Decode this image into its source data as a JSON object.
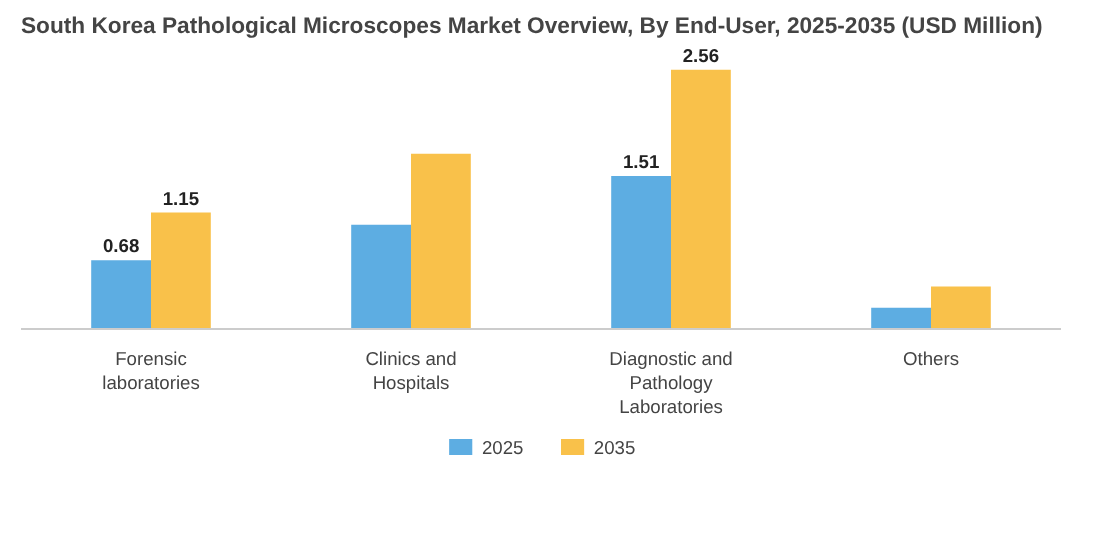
{
  "chart_data": {
    "type": "bar",
    "title": "South Korea Pathological Microscopes Market Overview, By End-User, 2025-2035 (USD Million)",
    "categories": [
      "Forensic laboratories",
      "Clinics and Hospitals",
      "Diagnostic and Pathology Laboratories",
      "Others"
    ],
    "series": [
      {
        "name": "2025",
        "color": "#5dade2",
        "values": [
          0.68,
          1.03,
          1.51,
          0.21
        ],
        "value_labels": [
          "0.68",
          null,
          "1.51",
          null
        ]
      },
      {
        "name": "2035",
        "color": "#f9c14a",
        "values": [
          1.15,
          1.73,
          2.56,
          0.42
        ],
        "value_labels": [
          "1.15",
          null,
          "2.56",
          null
        ]
      }
    ],
    "legend": "bottom"
  }
}
